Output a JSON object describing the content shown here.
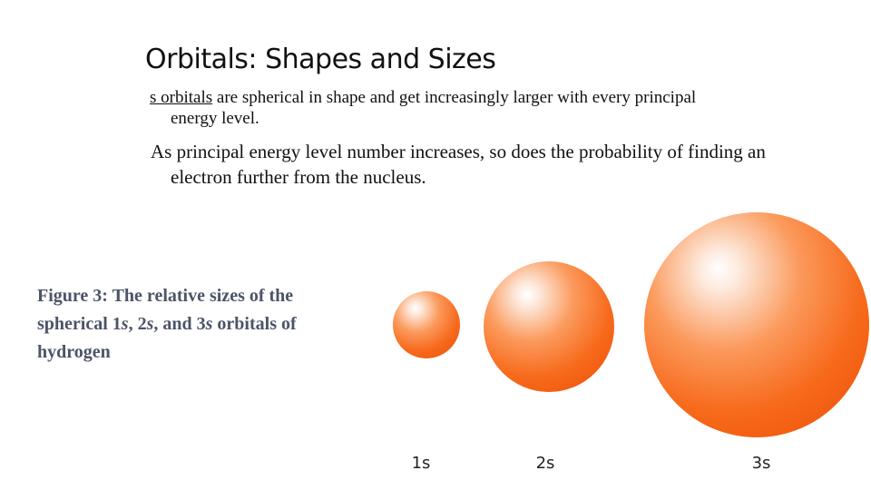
{
  "title": "Orbitals: Shapes and Sizes",
  "paragraphs": [
    {
      "underlined": "s orbitals",
      "text": " are spherical in shape and get increasingly larger with every principal energy level."
    },
    {
      "text": "As principal energy level number increases, so does the probability of finding an electron further from the nucleus."
    }
  ],
  "caption": [
    "Figure 3: The relative sizes of the spherical 1",
    "s",
    ", 2",
    "s",
    ", and 3",
    "s",
    " orbitals of hydrogen"
  ],
  "orbital_labels": [
    "1s",
    "2s",
    "3s"
  ]
}
